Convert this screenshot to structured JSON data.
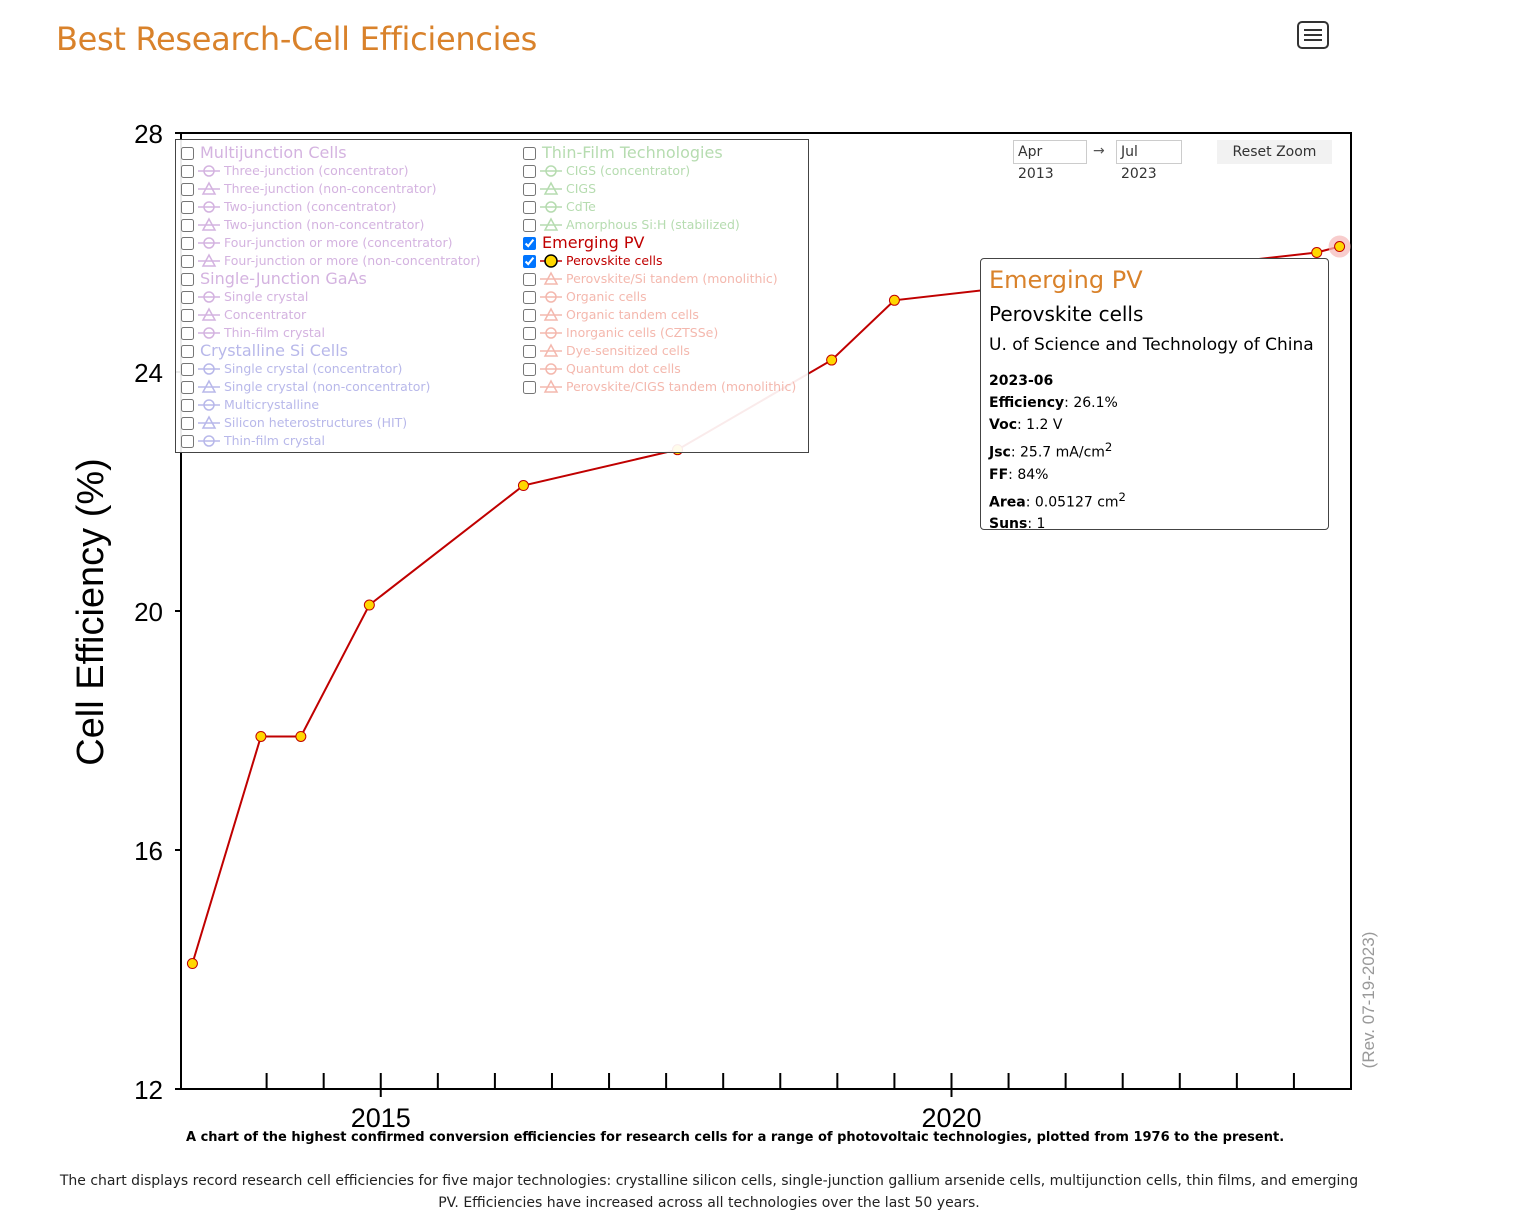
{
  "page": {
    "title": "Best Research-Cell Efficiencies",
    "menu_icon": "hamburger-icon",
    "caption": "A chart of the highest confirmed conversion efficiencies for research cells for a range of photovoltaic technologies, plotted from 1976 to the present.",
    "description": "The chart displays record research cell efficiencies for five major technologies: crystalline silicon cells, single-junction gallium arsenide cells, multijunction cells, thin films, and emerging PV. Efficiencies have increased across all technologies over the last 50 years."
  },
  "zoom": {
    "from": "Apr 2013",
    "arrow": "→",
    "to": "Jul 2023",
    "reset_label": "Reset Zoom"
  },
  "legend": {
    "left_groups": [
      {
        "label": "Multijunction Cells",
        "color": "#d4b3e0",
        "items": [
          "Three-junction (concentrator)",
          "Three-junction (non-concentrator)",
          "Two-junction (concentrator)",
          "Two-junction (non-concentrator)",
          "Four-junction or more (concentrator)",
          "Four-junction or more (non-concentrator)"
        ]
      },
      {
        "label": "Single-Junction GaAs",
        "color": "#d4b3e0",
        "items": [
          "Single crystal",
          "Concentrator",
          "Thin-film crystal"
        ]
      },
      {
        "label": "Crystalline Si Cells",
        "color": "#b8b8ea",
        "items": [
          "Single crystal (concentrator)",
          "Single crystal (non-concentrator)",
          "Multicrystalline",
          "Silicon heterostructures (HIT)",
          "Thin-film crystal"
        ]
      }
    ],
    "right_groups": [
      {
        "label": "Thin-Film Technologies",
        "color": "#b6dcb0",
        "items": [
          "CIGS (concentrator)",
          "CIGS",
          "CdTe",
          "Amorphous Si:H (stabilized)"
        ]
      },
      {
        "label": "Emerging PV",
        "color": "#c00000",
        "checked": true,
        "items": [
          "Perovskite cells",
          "Perovskite/Si tandem (monolithic)",
          "Organic cells",
          "Organic tandem cells",
          "Inorganic cells (CZTSSe)",
          "Dye-sensitized cells",
          "Quantum dot cells",
          "Perovskite/CIGS tandem (monolithic)"
        ]
      }
    ]
  },
  "tooltip": {
    "category": "Emerging PV",
    "technology": "Perovskite cells",
    "organization": "U. of Science and Technology of China",
    "date": "2023-06",
    "efficiency_label": "Efficiency",
    "efficiency": "26.1%",
    "voc_label": "Voc",
    "voc": "1.2 V",
    "jsc_label": "Jsc",
    "jsc": "25.7 mA/cm",
    "ff_label": "FF",
    "ff": "84%",
    "area_label": "Area",
    "area": "0.05127 cm",
    "suns_label": "Suns",
    "suns": "1",
    "sup": "2"
  },
  "revision": "(Rev. 07-19-2023)",
  "chart_data": {
    "type": "line",
    "ylabel": "Cell Efficiency (%)",
    "xlabel": "",
    "xlim": [
      2013.25,
      2023.5
    ],
    "ylim": [
      12,
      28
    ],
    "yticks": [
      12,
      16,
      20,
      24,
      28
    ],
    "xtick_labels": [
      2015,
      2020
    ],
    "grid": false,
    "series": [
      {
        "name": "Perovskite cells",
        "color": "#c00000",
        "marker_fill": "#ffd700",
        "x": [
          2013.35,
          2013.95,
          2014.3,
          2014.9,
          2016.25,
          2017.6,
          2018.95,
          2019.5,
          2023.2,
          2023.4
        ],
        "y": [
          14.1,
          17.9,
          17.9,
          20.1,
          22.1,
          22.7,
          24.2,
          25.2,
          26.0,
          26.1
        ]
      }
    ]
  }
}
